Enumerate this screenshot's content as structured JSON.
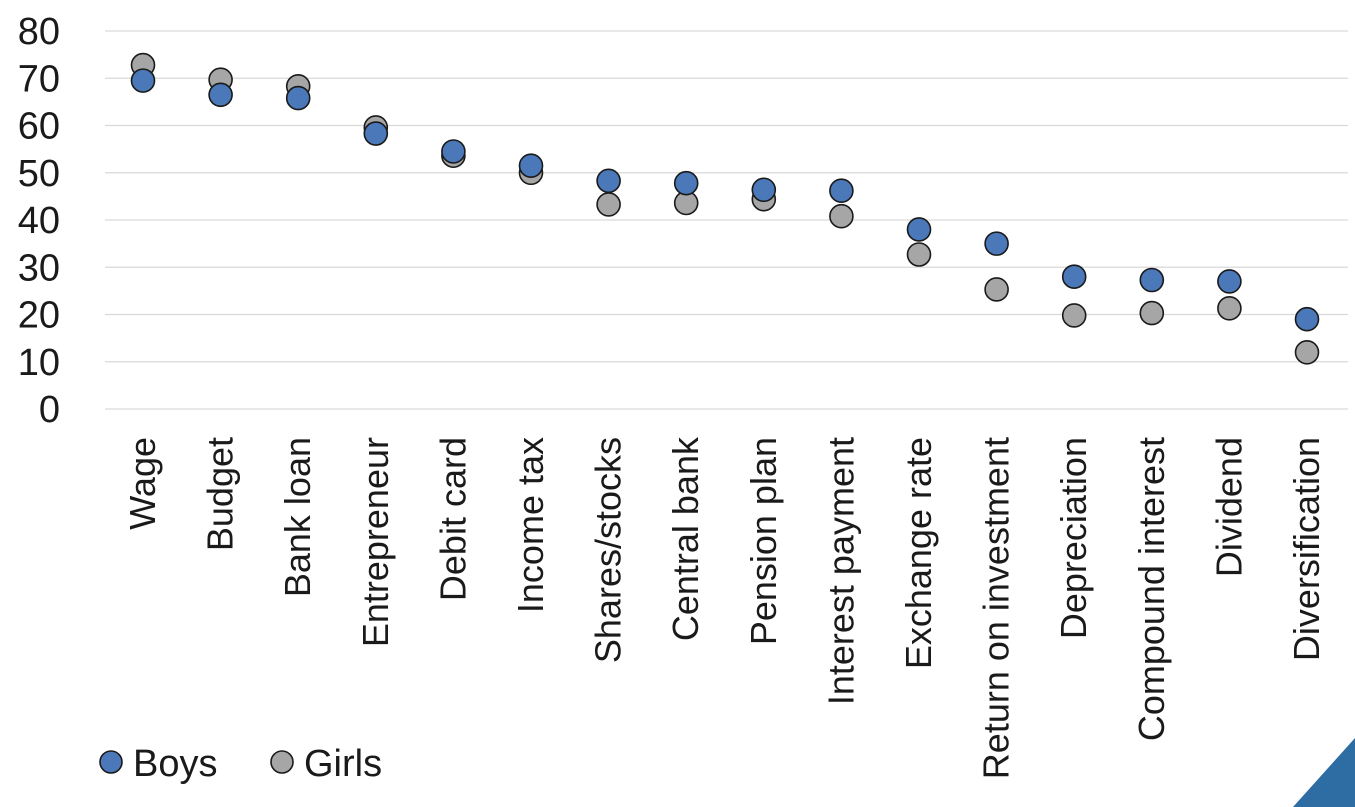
{
  "chart_data": {
    "type": "scatter",
    "categories": [
      "Wage",
      "Budget",
      "Bank loan",
      "Entrepreneur",
      "Debit card",
      "Income tax",
      "Shares/stocks",
      "Central bank",
      "Pension plan",
      "Interest payment",
      "Exchange rate",
      "Return on investment",
      "Depreciation",
      "Compound interest",
      "Dividend",
      "Diversification"
    ],
    "series": [
      {
        "name": "Boys",
        "color": "#4a78b8",
        "values": [
          69.5,
          66.5,
          65.8,
          58.3,
          54.5,
          51.5,
          48.3,
          47.8,
          46.4,
          46.2,
          38,
          35,
          28,
          27.3,
          27,
          19
        ]
      },
      {
        "name": "Girls",
        "color": "#a6a6a6",
        "values": [
          72.8,
          69.7,
          68.3,
          59.6,
          53.6,
          50,
          43.3,
          43.6,
          44.4,
          40.8,
          32.7,
          25.3,
          19.8,
          20.3,
          21.3,
          12
        ]
      }
    ],
    "ylim": [
      0,
      80
    ],
    "yticks": [
      0,
      10,
      20,
      30,
      40,
      50,
      60,
      70,
      80
    ],
    "grid": true,
    "legend_position": "bottom-left",
    "xlabel": "",
    "ylabel": "",
    "title": ""
  },
  "legend": {
    "boys_label": "Boys",
    "girls_label": "Girls"
  }
}
